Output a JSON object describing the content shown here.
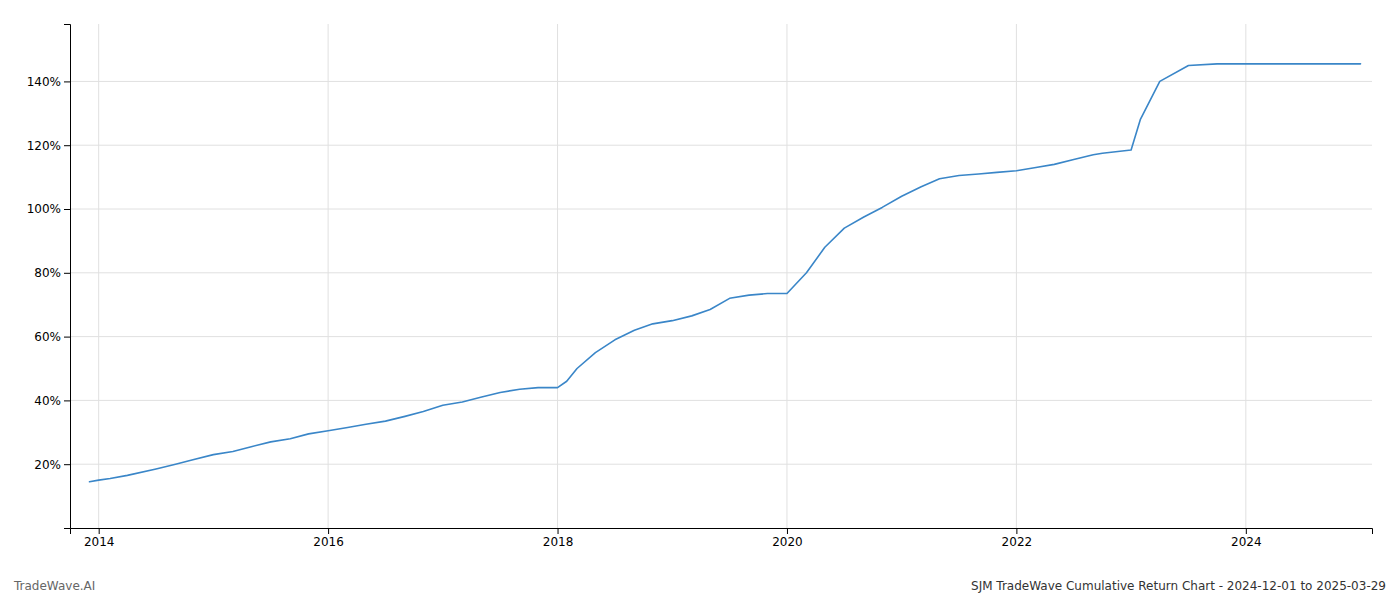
{
  "chart_data": {
    "type": "line",
    "title": "SJM TradeWave Cumulative Return Chart - 2024-12-01 to 2025-03-29",
    "annotations": [
      {
        "text": "TradeWave.AI"
      }
    ],
    "color": "#3a86c8",
    "x": [
      2013.92,
      2014.0,
      2014.1,
      2014.25,
      2014.5,
      2014.67,
      2014.83,
      2015.0,
      2015.17,
      2015.33,
      2015.5,
      2015.67,
      2015.83,
      2016.0,
      2016.17,
      2016.33,
      2016.5,
      2016.67,
      2016.83,
      2017.0,
      2017.17,
      2017.33,
      2017.5,
      2017.67,
      2017.83,
      2018.0,
      2018.08,
      2018.17,
      2018.33,
      2018.5,
      2018.67,
      2018.83,
      2019.0,
      2019.17,
      2019.33,
      2019.5,
      2019.67,
      2019.83,
      2020.0,
      2020.17,
      2020.33,
      2020.5,
      2020.67,
      2020.83,
      2021.0,
      2021.17,
      2021.33,
      2021.5,
      2021.67,
      2021.83,
      2022.0,
      2022.17,
      2022.33,
      2022.5,
      2022.67,
      2022.75,
      2023.0,
      2023.08,
      2023.25,
      2023.5,
      2023.75,
      2024.0,
      2024.25,
      2024.5,
      2024.75,
      2025.0
    ],
    "values": [
      14.5,
      15.0,
      15.5,
      16.5,
      18.5,
      20.0,
      21.5,
      23.0,
      24.0,
      25.5,
      27.0,
      28.0,
      29.5,
      30.5,
      31.5,
      32.5,
      33.5,
      35.0,
      36.5,
      38.5,
      39.5,
      41.0,
      42.5,
      43.5,
      44.0,
      44.0,
      46.0,
      50.0,
      55.0,
      59.0,
      62.0,
      64.0,
      65.0,
      66.5,
      68.5,
      72.0,
      73.0,
      73.5,
      73.5,
      80.0,
      88.0,
      94.0,
      97.5,
      100.5,
      104.0,
      107.0,
      109.5,
      110.5,
      111.0,
      111.5,
      112.0,
      113.0,
      114.0,
      115.5,
      117.0,
      117.5,
      118.5,
      128.0,
      140.0,
      145.0,
      145.5,
      145.5,
      145.5,
      145.5,
      145.5,
      145.5
    ],
    "xlim": [
      2013.75,
      2025.1
    ],
    "ylim": [
      0,
      158
    ],
    "xticks": [
      2014,
      2016,
      2018,
      2020,
      2022,
      2024
    ],
    "yticks": [
      {
        "value": 20,
        "label": "20%"
      },
      {
        "value": 40,
        "label": "40%"
      },
      {
        "value": 60,
        "label": "60%"
      },
      {
        "value": 80,
        "label": "80%"
      },
      {
        "value": 100,
        "label": "100%"
      },
      {
        "value": 120,
        "label": "120%"
      },
      {
        "value": 140,
        "label": "140%"
      }
    ],
    "grid": true
  }
}
